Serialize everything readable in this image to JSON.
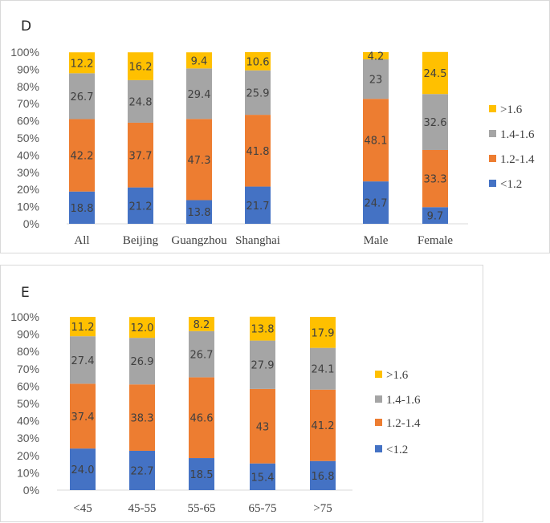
{
  "legend_labels": [
    "<1.2",
    "1.2-1.4",
    "1.4-1.6",
    ">1.6"
  ],
  "colors": {
    "<1.2": "#4472c4",
    "1.2-1.4": "#ed7d31",
    "1.4-1.6": "#a5a5a5",
    ">1.6": "#ffc000"
  },
  "chart_data": [
    {
      "panel": "D",
      "type": "bar",
      "stacked": true,
      "ylim": [
        0,
        100
      ],
      "yticks": [
        "0%",
        "10%",
        "20%",
        "30%",
        "40%",
        "50%",
        "60%",
        "70%",
        "80%",
        "90%",
        "100%"
      ],
      "categories": [
        "All",
        "Beijing",
        "Guangzhou",
        "Shanghai",
        "Male",
        "Female"
      ],
      "series": [
        {
          "name": "<1.2",
          "values": [
            18.8,
            21.2,
            13.8,
            21.7,
            24.7,
            9.7
          ],
          "labels": [
            "18.8",
            "21.2",
            "13.8",
            "21.7",
            "24.7",
            "9.7"
          ]
        },
        {
          "name": "1.2-1.4",
          "values": [
            42.2,
            37.7,
            47.3,
            41.8,
            48.1,
            33.3
          ],
          "labels": [
            "42.2",
            "37.7",
            "47.3",
            "41.8",
            "48.1",
            "33.3"
          ]
        },
        {
          "name": "1.4-1.6",
          "values": [
            26.7,
            24.8,
            29.4,
            25.9,
            23,
            32.6
          ],
          "labels": [
            "26.7",
            "24.8",
            "29.4",
            "25.9",
            "23",
            "32.6"
          ]
        },
        {
          "name": ">1.6",
          "values": [
            12.2,
            16.2,
            9.4,
            10.6,
            4.2,
            24.5
          ],
          "labels": [
            "12.2",
            "16.2",
            "9.4",
            "10.6",
            "4.2",
            "24.5"
          ]
        }
      ],
      "legend": "right"
    },
    {
      "panel": "E",
      "type": "bar",
      "stacked": true,
      "ylim": [
        0,
        100
      ],
      "yticks": [
        "0%",
        "10%",
        "20%",
        "30%",
        "40%",
        "50%",
        "60%",
        "70%",
        "80%",
        "90%",
        "100%"
      ],
      "categories": [
        "<45",
        "45-55",
        "55-65",
        "65-75",
        ">75"
      ],
      "series": [
        {
          "name": "<1.2",
          "values": [
            24.0,
            22.7,
            18.5,
            15.4,
            16.8
          ],
          "labels": [
            "24.0",
            "22.7",
            "18.5",
            "15.4",
            "16.8"
          ]
        },
        {
          "name": "1.2-1.4",
          "values": [
            37.4,
            38.3,
            46.6,
            43,
            41.2
          ],
          "labels": [
            "37.4",
            "38.3",
            "46.6",
            "43",
            "41.2"
          ]
        },
        {
          "name": "1.4-1.6",
          "values": [
            27.4,
            26.9,
            26.7,
            27.9,
            24.1
          ],
          "labels": [
            "27.4",
            "26.9",
            "26.7",
            "27.9",
            "24.1"
          ]
        },
        {
          "name": ">1.6",
          "values": [
            11.2,
            12.0,
            8.2,
            13.8,
            17.9
          ],
          "labels": [
            "11.2",
            "12.0",
            "8.2",
            "13.8",
            "17.9"
          ]
        }
      ],
      "legend": "right"
    }
  ]
}
